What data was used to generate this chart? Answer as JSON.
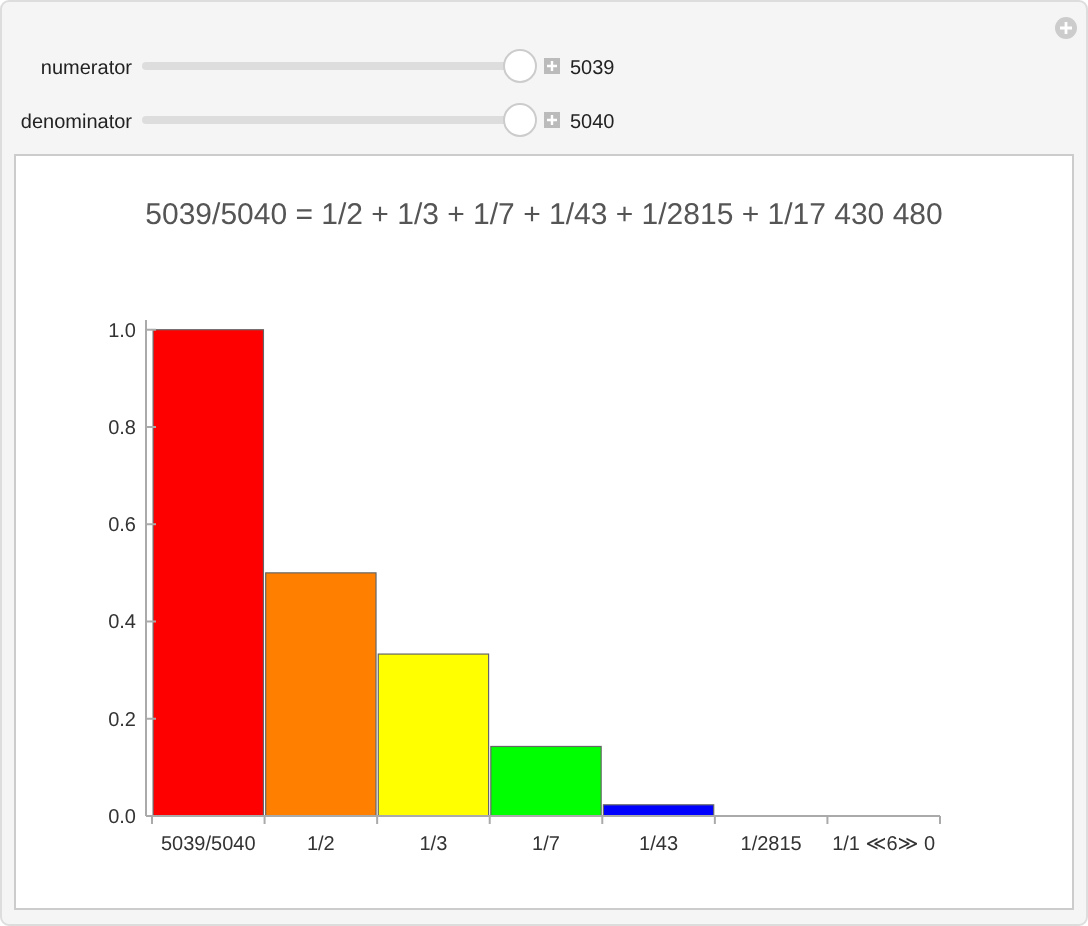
{
  "chart_data": {
    "type": "bar",
    "title": "5039/5040 = 1/2 + 1/3 + 1/7 + 1/43 + 1/2815 + 1/17 430 480",
    "categories": [
      "5039/5040",
      "1/2",
      "1/3",
      "1/7",
      "1/43",
      "1/2815",
      "1/1 ≪6≫ 0"
    ],
    "values": [
      1.0,
      0.5,
      0.333,
      0.143,
      0.023,
      0,
      0
    ],
    "colors": [
      "#ff0000",
      "#ff8000",
      "#ffff00",
      "#00ff00",
      "#0000ff",
      "#8000ff",
      "#ff00ff"
    ],
    "ylim": [
      0,
      1.02
    ],
    "yticks": [
      {
        "value": 0,
        "label": "0.0"
      },
      0.2,
      0.4,
      0.6,
      0.8,
      {
        "value": 1,
        "label": "1.0"
      }
    ],
    "grid": false,
    "annotations": [
      "numerator",
      "5039",
      "denominator",
      "5040"
    ]
  }
}
